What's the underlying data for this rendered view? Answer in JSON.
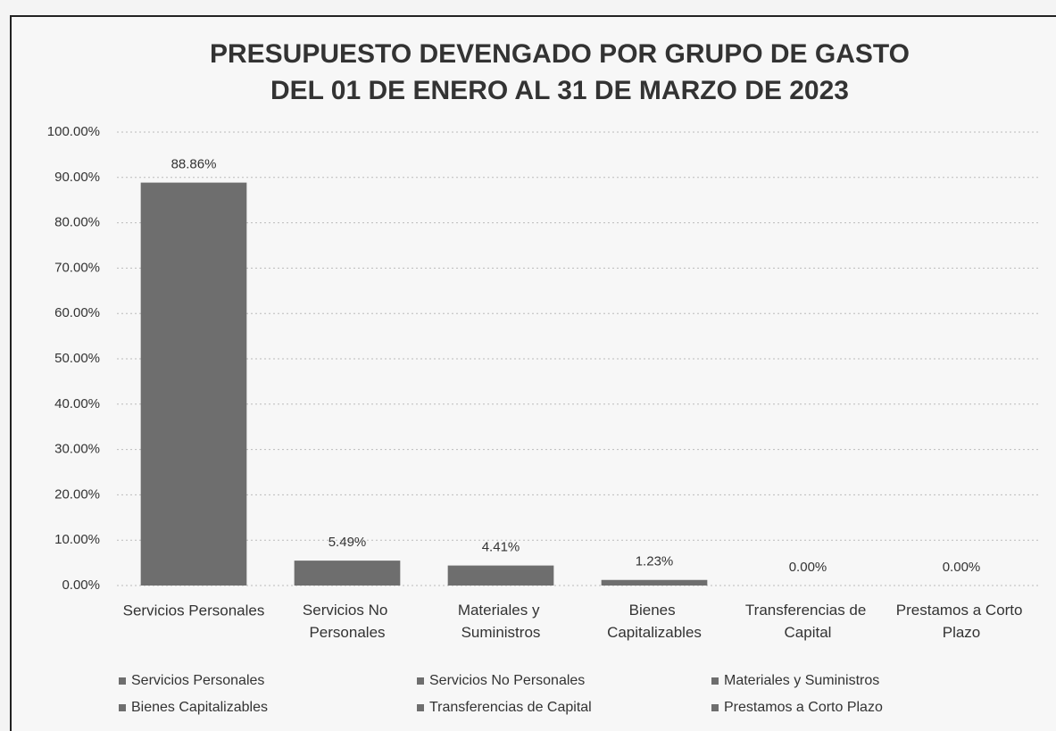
{
  "chart_data": {
    "type": "bar",
    "title": [
      "PRESUPUESTO DEVENGADO POR GRUPO DE GASTO",
      "DEL 01 DE ENERO AL 31 DE MARZO DE  2023"
    ],
    "categories": [
      "Servicios Personales",
      "Servicios No Personales",
      "Materiales y Suministros",
      "Bienes Capitalizables",
      "Transferencias de Capital",
      "Prestamos a Corto Plazo"
    ],
    "values": [
      88.86,
      5.49,
      4.41,
      1.23,
      0,
      0
    ],
    "value_labels": [
      "88.86%",
      "5.49%",
      "4.41%",
      "1.23%",
      "0.00%",
      "0.00%"
    ],
    "color": "#6e6e6e",
    "ylim": [
      0,
      100
    ],
    "yticks": [
      {
        "value": 0,
        "label": "0.00%"
      },
      {
        "value": 10,
        "label": "10.00%"
      },
      {
        "value": 20,
        "label": "20.00%"
      },
      {
        "value": 30,
        "label": "30.00%"
      },
      {
        "value": 40,
        "label": "40.00%"
      },
      {
        "value": 50,
        "label": "50.00%"
      },
      {
        "value": 60,
        "label": "60.00%"
      },
      {
        "value": 70,
        "label": "70.00%"
      },
      {
        "value": 80,
        "label": "80.00%"
      },
      {
        "value": 90,
        "label": "90.00%"
      },
      {
        "value": 100,
        "label": "100.00%"
      }
    ],
    "grid": true,
    "legend": "bottom"
  }
}
